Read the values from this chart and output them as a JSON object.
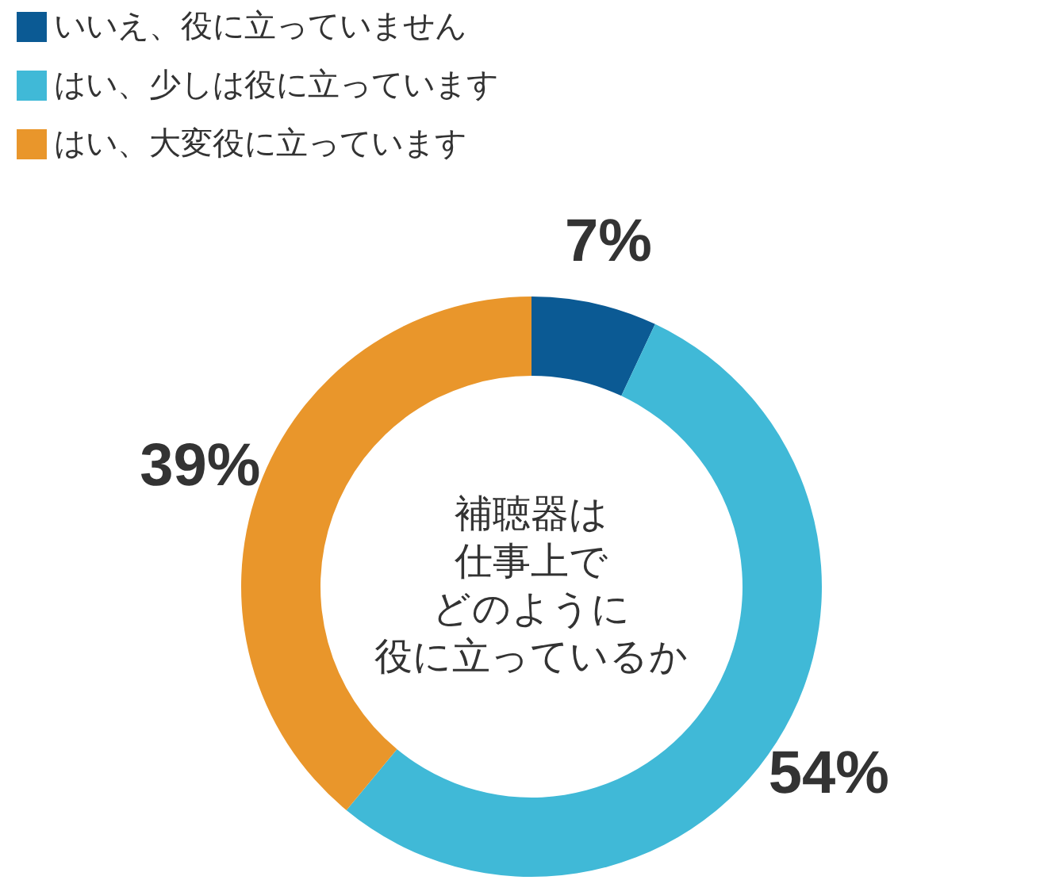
{
  "chart_data": {
    "type": "donut",
    "annotations": [
      "補聴器は",
      "仕事上で",
      "どのように",
      "役に立っているか"
    ],
    "categories": [
      "いいえ、役に立っていません",
      "はい、少しは役に立っています",
      "はい、大変役に立っています"
    ],
    "values": [
      7,
      54,
      39
    ],
    "colors": [
      "#0b5a94",
      "#40b9d7",
      "#e9962b"
    ],
    "value_labels": [
      "7%",
      "54%",
      "39%"
    ],
    "legend": "top left"
  }
}
